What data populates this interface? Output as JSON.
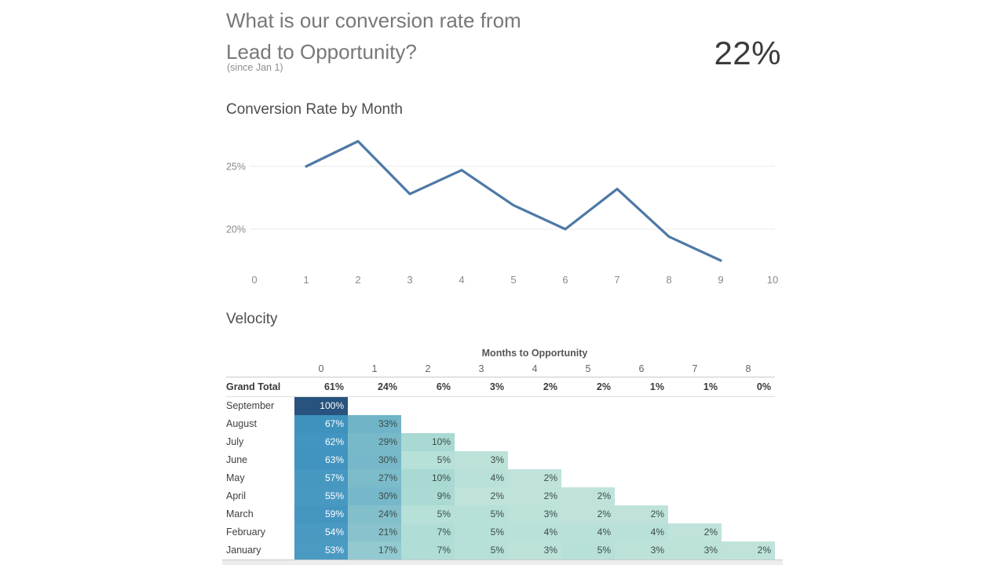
{
  "header": {
    "title_line1": "What is our conversion rate from",
    "title_line2": "Lead to Opportunity?",
    "subtitle": "(since Jan 1)",
    "kpi_value": "22%"
  },
  "chart_data": [
    {
      "type": "line",
      "title": "Conversion Rate by Month",
      "x": [
        1,
        2,
        3,
        4,
        5,
        6,
        7,
        8,
        9
      ],
      "y": [
        25,
        27,
        22.8,
        24.7,
        21.9,
        20,
        23.2,
        19.4,
        17.5
      ],
      "x_ticks": [
        0,
        1,
        2,
        3,
        4,
        5,
        6,
        7,
        8,
        9,
        10
      ],
      "y_ticks": [
        {
          "value": 25,
          "label": "25%"
        },
        {
          "value": 20,
          "label": "20%"
        }
      ],
      "xlim": [
        0,
        10
      ],
      "ylim": [
        15.8,
        28
      ],
      "grid": "horizontal",
      "legend": "none",
      "line_color": "#4e79a7",
      "axis_label_color": "#8a8a8a",
      "gridline_color": "#e9e9e9"
    },
    {
      "type": "heatmap",
      "title": "Velocity",
      "column_group_label": "Months to Opportunity",
      "columns": [
        "0",
        "1",
        "2",
        "3",
        "4",
        "5",
        "6",
        "7",
        "8"
      ],
      "value_suffix": "%",
      "grand_total": {
        "label": "Grand Total",
        "values": [
          61,
          24,
          6,
          3,
          2,
          2,
          1,
          1,
          0
        ]
      },
      "rows": [
        {
          "label": "September",
          "values": [
            100
          ]
        },
        {
          "label": "August",
          "values": [
            67,
            33
          ]
        },
        {
          "label": "July",
          "values": [
            62,
            29,
            10
          ]
        },
        {
          "label": "June",
          "values": [
            63,
            30,
            5,
            3
          ]
        },
        {
          "label": "May",
          "values": [
            57,
            27,
            10,
            4,
            2
          ]
        },
        {
          "label": "April",
          "values": [
            55,
            30,
            9,
            2,
            2,
            2
          ]
        },
        {
          "label": "March",
          "values": [
            59,
            24,
            5,
            5,
            3,
            2,
            2
          ]
        },
        {
          "label": "February",
          "values": [
            54,
            21,
            7,
            5,
            4,
            4,
            4,
            2
          ]
        },
        {
          "label": "January",
          "values": [
            53,
            17,
            7,
            5,
            3,
            5,
            3,
            3,
            2
          ]
        }
      ],
      "colorscale": [
        {
          "v": 0,
          "color": "#c5e6dd"
        },
        {
          "v": 3,
          "color": "#bce2da"
        },
        {
          "v": 5,
          "color": "#b6e0d8"
        },
        {
          "v": 10,
          "color": "#a8d9d3"
        },
        {
          "v": 17,
          "color": "#93c9d0"
        },
        {
          "v": 21,
          "color": "#89c2cc"
        },
        {
          "v": 27,
          "color": "#7cbcca"
        },
        {
          "v": 33,
          "color": "#6fb4c7"
        },
        {
          "v": 53,
          "color": "#4a9ac2"
        },
        {
          "v": 61,
          "color": "#4295c0"
        },
        {
          "v": 67,
          "color": "#3e92be"
        },
        {
          "v": 100,
          "color": "#27537e"
        }
      ],
      "light_text_threshold": 50,
      "cell_text_light": "#ffffff",
      "cell_text_dark": "#3d4b48"
    }
  ]
}
